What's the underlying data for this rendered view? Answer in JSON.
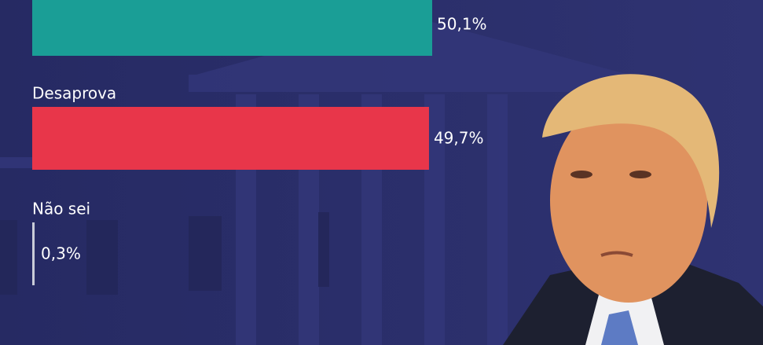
{
  "chart_data": {
    "type": "bar",
    "orientation": "horizontal",
    "categories": [
      null,
      "Desaprova",
      "Não sei"
    ],
    "values": [
      50.1,
      49.7,
      0.3
    ],
    "value_labels": [
      "50,1%",
      "49,7%",
      "0,3%"
    ],
    "colors": [
      "#1a9e96",
      "#e8364a",
      "#c9ccd8"
    ]
  }
}
